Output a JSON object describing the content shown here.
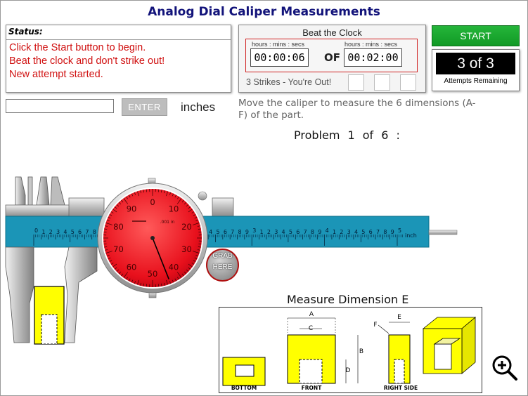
{
  "app": {
    "title": "Analog Dial Caliper Measurements"
  },
  "status": {
    "label": "Status:",
    "lines": [
      "Click the Start button to begin.",
      "Beat the clock and don't strike out!",
      "New attempt started."
    ]
  },
  "clock": {
    "title": "Beat the Clock",
    "elapsed_caption": "hours : mins : secs",
    "elapsed": "00:00:06",
    "of_label": "OF",
    "limit_caption": "hours : mins : secs",
    "limit": "00:02:00",
    "strikes_label": "3 Strikes - You're Out!",
    "strikes_used": 0
  },
  "start_button": {
    "label": "START"
  },
  "attempts": {
    "count": "3 of 3",
    "label": "Attempts Remaining"
  },
  "answer": {
    "value": "",
    "enter_label": "ENTER",
    "units": "inches"
  },
  "instruction": "Move the caliper to measure the 6 dimensions (A-F) of the part.",
  "problem": {
    "text": "Problem  1  of  6  :"
  },
  "caliper": {
    "scale_unit": "inch",
    "scale_major": [
      "1",
      "2",
      "3",
      "4",
      "5"
    ],
    "dial_numbers": [
      "0",
      "10",
      "20",
      "30",
      "40",
      "50",
      "60",
      "70",
      "80",
      "90"
    ],
    "dial_unit": ".001 in",
    "dial_reading_thousandths": 44,
    "grab_label_1": "GRAB",
    "grab_label_2": "HERE",
    "colors": {
      "scale": "#1b95b7",
      "dial_face": "#e8101c",
      "part": "#ffff00"
    }
  },
  "drawing": {
    "title": "Measure Dimension E",
    "views": {
      "bottom": "BOTTOM",
      "front": "FRONT",
      "right": "RIGHT SIDE"
    },
    "dims": {
      "A": "A",
      "B": "B",
      "C": "C",
      "D": "D",
      "E": "E",
      "F": "F"
    }
  },
  "zoom": {
    "icon": "zoom-in-icon"
  }
}
